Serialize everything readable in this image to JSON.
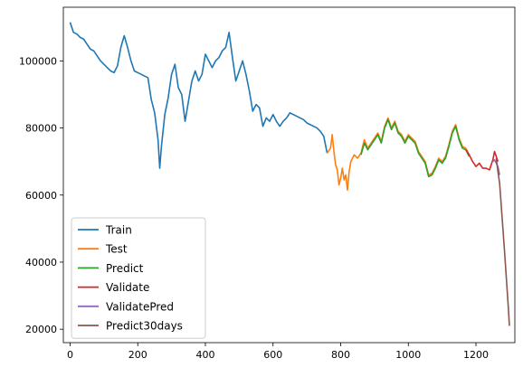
{
  "chart_data": {
    "type": "line",
    "title": "",
    "xlabel": "",
    "ylabel": "",
    "xlim": [
      -20,
      1315
    ],
    "ylim": [
      16000,
      116000
    ],
    "xticks": [
      0,
      200,
      400,
      600,
      800,
      1000,
      1200
    ],
    "yticks": [
      20000,
      40000,
      60000,
      80000,
      100000
    ],
    "grid": false,
    "legend_position": "lower-left",
    "series": [
      {
        "name": "Train",
        "color": "#1f77b4",
        "points": [
          [
            0,
            111500
          ],
          [
            10,
            108500
          ],
          [
            20,
            108000
          ],
          [
            30,
            107000
          ],
          [
            40,
            106500
          ],
          [
            50,
            105000
          ],
          [
            60,
            103500
          ],
          [
            70,
            103000
          ],
          [
            80,
            101500
          ],
          [
            90,
            100000
          ],
          [
            100,
            99000
          ],
          [
            110,
            98000
          ],
          [
            120,
            97000
          ],
          [
            130,
            96500
          ],
          [
            140,
            98500
          ],
          [
            150,
            104000
          ],
          [
            160,
            107500
          ],
          [
            170,
            104000
          ],
          [
            180,
            100000
          ],
          [
            190,
            97000
          ],
          [
            200,
            96500
          ],
          [
            210,
            96000
          ],
          [
            220,
            95500
          ],
          [
            230,
            95000
          ],
          [
            240,
            88500
          ],
          [
            250,
            84500
          ],
          [
            260,
            76500
          ],
          [
            265,
            68000
          ],
          [
            270,
            74500
          ],
          [
            280,
            84000
          ],
          [
            290,
            89000
          ],
          [
            300,
            96000
          ],
          [
            310,
            99000
          ],
          [
            320,
            92000
          ],
          [
            330,
            90000
          ],
          [
            340,
            82000
          ],
          [
            350,
            88000
          ],
          [
            360,
            94000
          ],
          [
            370,
            97000
          ],
          [
            380,
            94000
          ],
          [
            390,
            96000
          ],
          [
            400,
            102000
          ],
          [
            410,
            100000
          ],
          [
            420,
            98000
          ],
          [
            430,
            100000
          ],
          [
            440,
            101000
          ],
          [
            450,
            103000
          ],
          [
            460,
            104000
          ],
          [
            470,
            108500
          ],
          [
            480,
            101000
          ],
          [
            490,
            94000
          ],
          [
            500,
            97000
          ],
          [
            510,
            100000
          ],
          [
            520,
            96000
          ],
          [
            530,
            91000
          ],
          [
            540,
            85000
          ],
          [
            550,
            87000
          ],
          [
            560,
            86000
          ],
          [
            570,
            80500
          ],
          [
            580,
            83000
          ],
          [
            590,
            82000
          ],
          [
            600,
            84000
          ],
          [
            610,
            82000
          ],
          [
            620,
            80500
          ],
          [
            630,
            82000
          ],
          [
            640,
            83000
          ],
          [
            650,
            84500
          ],
          [
            660,
            84000
          ],
          [
            670,
            83500
          ],
          [
            680,
            83000
          ],
          [
            690,
            82500
          ],
          [
            700,
            81500
          ],
          [
            710,
            81000
          ],
          [
            720,
            80500
          ],
          [
            730,
            80000
          ],
          [
            740,
            79000
          ],
          [
            750,
            77500
          ],
          [
            760,
            72500
          ]
        ]
      },
      {
        "name": "Test",
        "color": "#ff7f0e",
        "points": [
          [
            760,
            72500
          ],
          [
            770,
            74000
          ],
          [
            775,
            78000
          ],
          [
            780,
            73000
          ],
          [
            785,
            69000
          ],
          [
            790,
            67500
          ],
          [
            795,
            63000
          ],
          [
            800,
            65000
          ],
          [
            805,
            68000
          ],
          [
            810,
            64500
          ],
          [
            815,
            66000
          ],
          [
            820,
            61500
          ],
          [
            825,
            67000
          ],
          [
            830,
            70000
          ],
          [
            840,
            72000
          ],
          [
            850,
            71000
          ],
          [
            860,
            72500
          ],
          [
            870,
            76500
          ],
          [
            880,
            74000
          ],
          [
            890,
            75500
          ],
          [
            900,
            77000
          ],
          [
            910,
            78500
          ],
          [
            920,
            76000
          ],
          [
            930,
            80500
          ],
          [
            940,
            83000
          ],
          [
            950,
            80000
          ],
          [
            960,
            82000
          ],
          [
            970,
            79000
          ],
          [
            980,
            78000
          ],
          [
            990,
            76000
          ],
          [
            1000,
            78000
          ],
          [
            1010,
            77000
          ],
          [
            1020,
            76000
          ],
          [
            1030,
            73000
          ],
          [
            1040,
            71500
          ],
          [
            1050,
            70000
          ],
          [
            1060,
            66000
          ],
          [
            1070,
            66500
          ],
          [
            1080,
            68500
          ],
          [
            1090,
            71000
          ],
          [
            1100,
            70000
          ],
          [
            1110,
            71500
          ],
          [
            1120,
            75000
          ],
          [
            1130,
            79000
          ],
          [
            1140,
            81000
          ],
          [
            1150,
            77000
          ],
          [
            1160,
            74500
          ],
          [
            1170,
            74000
          ],
          [
            1180,
            72000
          ]
        ]
      },
      {
        "name": "Predict",
        "color": "#2ca02c",
        "points": [
          [
            860,
            72000
          ],
          [
            870,
            75500
          ],
          [
            880,
            73500
          ],
          [
            890,
            75000
          ],
          [
            900,
            76500
          ],
          [
            910,
            78000
          ],
          [
            920,
            75500
          ],
          [
            930,
            80000
          ],
          [
            940,
            82500
          ],
          [
            950,
            79500
          ],
          [
            960,
            81500
          ],
          [
            970,
            78500
          ],
          [
            980,
            77500
          ],
          [
            990,
            75500
          ],
          [
            1000,
            77500
          ],
          [
            1010,
            76500
          ],
          [
            1020,
            75500
          ],
          [
            1030,
            72500
          ],
          [
            1040,
            71000
          ],
          [
            1050,
            69500
          ],
          [
            1060,
            65500
          ],
          [
            1070,
            66000
          ],
          [
            1080,
            68000
          ],
          [
            1090,
            70500
          ],
          [
            1100,
            69500
          ],
          [
            1110,
            71000
          ],
          [
            1120,
            74500
          ],
          [
            1130,
            78500
          ],
          [
            1140,
            80500
          ],
          [
            1150,
            76500
          ],
          [
            1160,
            74000
          ],
          [
            1170,
            73500
          ],
          [
            1180,
            71500
          ]
        ]
      },
      {
        "name": "Validate",
        "color": "#d62728",
        "points": [
          [
            1170,
            73500
          ],
          [
            1180,
            72000
          ],
          [
            1190,
            70000
          ],
          [
            1200,
            68500
          ],
          [
            1210,
            69500
          ],
          [
            1220,
            68000
          ],
          [
            1230,
            68000
          ],
          [
            1240,
            67500
          ],
          [
            1250,
            70500
          ],
          [
            1255,
            73000
          ],
          [
            1260,
            71500
          ],
          [
            1265,
            70000
          ]
        ]
      },
      {
        "name": "ValidatePred",
        "color": "#9467bd",
        "points": [
          [
            1250,
            70000
          ],
          [
            1255,
            70500
          ],
          [
            1260,
            69500
          ],
          [
            1265,
            68500
          ],
          [
            1270,
            66000
          ]
        ]
      },
      {
        "name": "Predict30days",
        "color": "#8c564b",
        "points": [
          [
            1260,
            71000
          ],
          [
            1265,
            67000
          ],
          [
            1270,
            63500
          ],
          [
            1275,
            56500
          ],
          [
            1280,
            49500
          ],
          [
            1285,
            42500
          ],
          [
            1290,
            35000
          ],
          [
            1295,
            27500
          ],
          [
            1299,
            21000
          ]
        ]
      }
    ]
  }
}
